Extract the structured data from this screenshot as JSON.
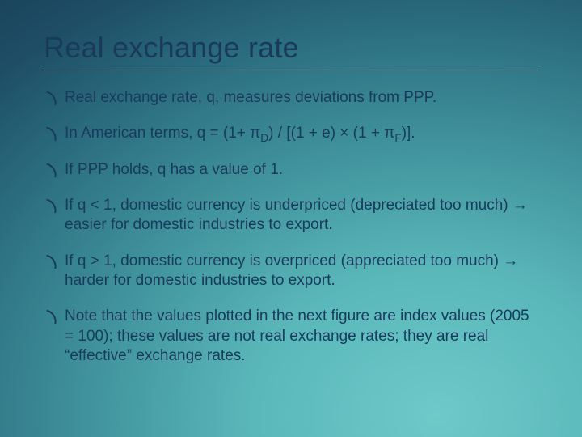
{
  "slide": {
    "title": "Real exchange rate",
    "title_color": "#1a3a5c",
    "title_fontsize": 36,
    "body_color": "#1a3a5c",
    "body_fontsize": 19,
    "divider_color": "rgba(255,255,255,0.55)",
    "background_gradient": {
      "type": "radial",
      "center": "75% 95%",
      "stops": [
        {
          "color": "#6ec9c9",
          "at": "0%"
        },
        {
          "color": "#5ab8ba",
          "at": "25%"
        },
        {
          "color": "#3e8f9a",
          "at": "50%"
        },
        {
          "color": "#2a6b7e",
          "at": "70%"
        },
        {
          "color": "#1e4e66",
          "at": "85%"
        },
        {
          "color": "#183f56",
          "at": "100%"
        }
      ]
    },
    "bullets": [
      {
        "segments": [
          {
            "t": "Real exchange rate, q, measures deviations from PPP."
          }
        ]
      },
      {
        "segments": [
          {
            "t": "In American terms, q = (1+ π"
          },
          {
            "t": "D",
            "sub": true
          },
          {
            "t": ") / [(1 + e) × (1 + π"
          },
          {
            "t": "F",
            "sub": true
          },
          {
            "t": ")]."
          }
        ]
      },
      {
        "segments": [
          {
            "t": "If PPP holds, q has a value of 1."
          }
        ]
      },
      {
        "segments": [
          {
            "t": "If q < 1, domestic currency is underpriced (depreciated too much) "
          },
          {
            "t": "→",
            "arrow": true
          },
          {
            "t": " easier for domestic industries to export."
          }
        ]
      },
      {
        "segments": [
          {
            "t": "If q > 1, domestic currency is overpriced (appreciated too much) "
          },
          {
            "t": "→",
            "arrow": true
          },
          {
            "t": " harder for domestic industries to export."
          }
        ]
      },
      {
        "segments": [
          {
            "t": "Note that the values plotted in the next figure are index values (2005 = 100); these values are not real exchange rates; they are real “effective” exchange rates."
          }
        ]
      }
    ]
  }
}
